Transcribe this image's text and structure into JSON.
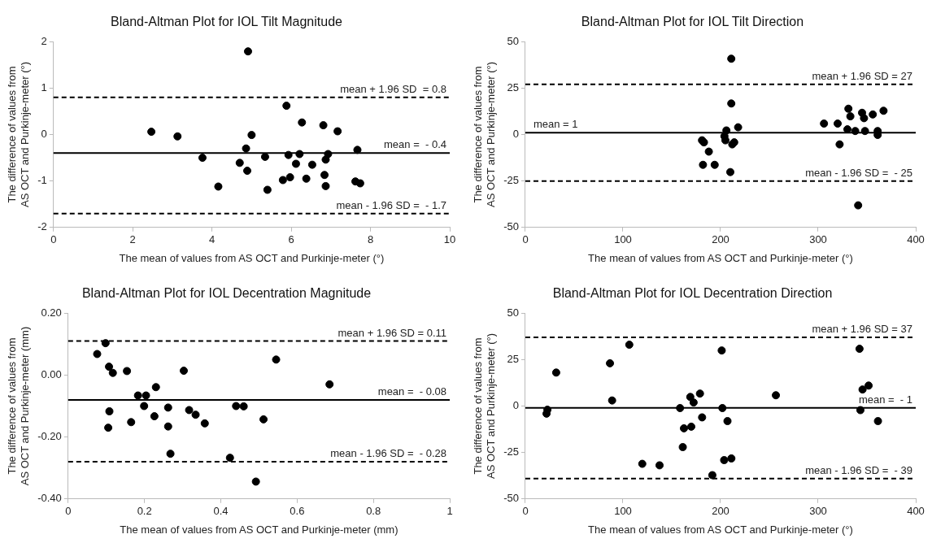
{
  "chart_data": [
    {
      "type": "scatter",
      "title": "Bland-Altman Plot for IOL Tilt Magnitude",
      "xlabel": "The mean of values from AS OCT and Purkinje-meter (°)",
      "ylabel": "The difference of values from\nAS OCT and Purkinje-meter (°)",
      "marker": "circle",
      "series": [
        {
          "color": "#000000",
          "x": [
            2.47,
            3.13,
            3.76,
            4.16,
            4.7,
            4.86,
            4.91,
            4.89,
            5.0,
            5.34,
            5.4,
            5.79,
            5.88,
            5.93,
            5.97,
            6.12,
            6.21,
            6.27,
            6.38,
            6.53,
            6.81,
            6.84,
            6.87,
            6.87,
            6.93,
            7.17,
            7.62,
            7.67,
            7.74
          ],
          "values": [
            0.06,
            -0.04,
            -0.5,
            -1.12,
            -0.61,
            -0.3,
            1.79,
            -0.78,
            -0.01,
            -0.48,
            -1.19,
            -0.98,
            0.62,
            -0.44,
            -0.92,
            -0.63,
            -0.42,
            0.26,
            -0.95,
            -0.65,
            0.2,
            -0.87,
            -0.54,
            -1.11,
            -0.42,
            0.07,
            -1.01,
            -0.33,
            -1.05
          ]
        }
      ],
      "xlim": [
        0,
        10
      ],
      "xticks": [
        0,
        2,
        4,
        6,
        8,
        10
      ],
      "ylim": [
        -2,
        2
      ],
      "yticks": [
        -2,
        -1,
        0,
        1,
        2
      ],
      "ref_lines": [
        {
          "axis": "y",
          "value": 0.8,
          "label": "mean + 1.96 SD  = 0.8",
          "color": "#000000",
          "line_style": "dashed"
        },
        {
          "axis": "y",
          "value": -0.4,
          "label": "mean =  - 0.4",
          "color": "#000000",
          "line_style": "solid"
        },
        {
          "axis": "y",
          "value": -1.7,
          "label": "mean - 1.96 SD =  - 1.7",
          "color": "#000000",
          "line_style": "dashed"
        }
      ]
    },
    {
      "type": "scatter",
      "title": "Bland-Altman Plot for IOL Tilt Direction",
      "xlabel": "The mean of values from AS OCT and Purkinje-meter (°)",
      "ylabel": "The difference of values from\nAS OCT and Purkinje-meter (°)",
      "marker": "circle",
      "series": [
        {
          "color": "#000000",
          "x": [
            181,
            183,
            188,
            182,
            194,
            211,
            211,
            210,
            206,
            204,
            205,
            212,
            214,
            218,
            306,
            320,
            322,
            330,
            331,
            333,
            338,
            345,
            347,
            348,
            356,
            361,
            361,
            367,
            341
          ],
          "values": [
            -3.1,
            -4.2,
            -9.2,
            -16.3,
            -16.3,
            40.8,
            16.7,
            -20.2,
            2.2,
            -0.9,
            -3.1,
            -5.3,
            -4.2,
            3.9,
            5.9,
            5.9,
            -5.3,
            2.8,
            13.9,
            9.8,
            1.9,
            11.7,
            8.8,
            1.9,
            10.8,
            1.9,
            -0.2,
            12.8,
            -38.1
          ]
        }
      ],
      "xlim": [
        0,
        400
      ],
      "xticks": [
        0,
        100,
        200,
        300,
        400
      ],
      "ylim": [
        -50,
        50
      ],
      "yticks": [
        -50,
        -25,
        0,
        25,
        50
      ],
      "ref_lines": [
        {
          "axis": "y",
          "value": 27,
          "label": "mean + 1.96 SD = 27",
          "color": "#000000",
          "line_style": "dashed"
        },
        {
          "axis": "y",
          "value": 1,
          "label": "mean = 1",
          "color": "#000000",
          "line_style": "solid"
        },
        {
          "axis": "y",
          "value": -25,
          "label": "mean - 1.96 SD =  - 25",
          "color": "#000000",
          "line_style": "dashed"
        }
      ]
    },
    {
      "type": "scatter",
      "title": "Bland-Altman Plot for IOL Decentration Magnitude",
      "xlabel": "The mean of values from AS OCT and Purkinje-meter (mm)",
      "ylabel": "The difference of values from\nAS OCT and Purkinje-meter (mm)",
      "marker": "circle",
      "series": [
        {
          "color": "#000000",
          "x": [
            0.076,
            0.098,
            0.107,
            0.117,
            0.108,
            0.105,
            0.154,
            0.165,
            0.183,
            0.204,
            0.199,
            0.23,
            0.226,
            0.262,
            0.262,
            0.268,
            0.303,
            0.317,
            0.334,
            0.358,
            0.424,
            0.44,
            0.46,
            0.512,
            0.492,
            0.545,
            0.685
          ],
          "values": [
            0.068,
            0.103,
            0.027,
            0.007,
            -0.117,
            -0.17,
            0.013,
            -0.152,
            -0.066,
            -0.066,
            -0.1,
            -0.039,
            -0.133,
            -0.105,
            -0.166,
            -0.254,
            0.014,
            -0.113,
            -0.128,
            -0.156,
            -0.267,
            -0.1,
            -0.101,
            -0.143,
            -0.344,
            0.05,
            -0.03
          ]
        }
      ],
      "xlim": [
        0,
        1
      ],
      "xticks": [
        0,
        0.2,
        0.4,
        0.6,
        0.8,
        1
      ],
      "ylim": [
        -0.4,
        0.2
      ],
      "yticks": [
        {
          "value": -0.4,
          "label": "-0.40"
        },
        {
          "value": -0.2,
          "label": "-0.20"
        },
        {
          "value": 0,
          "label": "0.00"
        },
        {
          "value": 0.2,
          "label": "0.20"
        }
      ],
      "ref_lines": [
        {
          "axis": "y",
          "value": 0.11,
          "label": "mean + 1.96 SD = 0.11",
          "color": "#000000",
          "line_style": "dashed"
        },
        {
          "axis": "y",
          "value": -0.08,
          "label": "mean =  - 0.08",
          "color": "#000000",
          "line_style": "solid"
        },
        {
          "axis": "y",
          "value": -0.28,
          "label": "mean - 1.96 SD =  - 0.28",
          "color": "#000000",
          "line_style": "dashed"
        }
      ]
    },
    {
      "type": "scatter",
      "title": "Bland-Altman Plot for IOL Decentration Direction",
      "xlabel": "The mean of values from AS OCT and Purkinje-meter (°)",
      "ylabel": "The difference of values from\nAS OCT and Purkinje-meter (°)",
      "marker": "circle",
      "series": [
        {
          "color": "#000000",
          "x": [
            21.7,
            22.6,
            31.6,
            86.7,
            88.9,
            106.5,
            119.8,
            137.5,
            158.5,
            162.5,
            161.3,
            169,
            170,
            172.4,
            178.9,
            181.1,
            191.6,
            201.2,
            201.9,
            203.7,
            207.1,
            211.1,
            256.7,
            342.4,
            343.3,
            345.5,
            351.7,
            361.3
          ],
          "values": [
            -4.1,
            -2,
            18,
            23,
            3,
            33,
            -31.1,
            -31.9,
            -1.1,
            -12,
            -22.1,
            4.9,
            -11.1,
            1.9,
            6.7,
            -6.1,
            -37.2,
            29.9,
            -1.1,
            -29.1,
            -8.1,
            -28.2,
            5.8,
            30.8,
            -2.2,
            8.9,
            11,
            -8.1
          ]
        }
      ],
      "xlim": [
        0,
        400
      ],
      "xticks": [
        0,
        100,
        200,
        300,
        400
      ],
      "ylim": [
        -50,
        50
      ],
      "yticks": [
        -50,
        -25,
        0,
        25,
        50
      ],
      "ref_lines": [
        {
          "axis": "y",
          "value": 37,
          "label": "mean + 1.96 SD = 37",
          "color": "#000000",
          "line_style": "dashed"
        },
        {
          "axis": "y",
          "value": -1,
          "label": "mean =  - 1",
          "color": "#000000",
          "line_style": "solid"
        },
        {
          "axis": "y",
          "value": -39,
          "label": "mean - 1.96 SD =  - 39",
          "color": "#000000",
          "line_style": "dashed"
        }
      ]
    }
  ]
}
